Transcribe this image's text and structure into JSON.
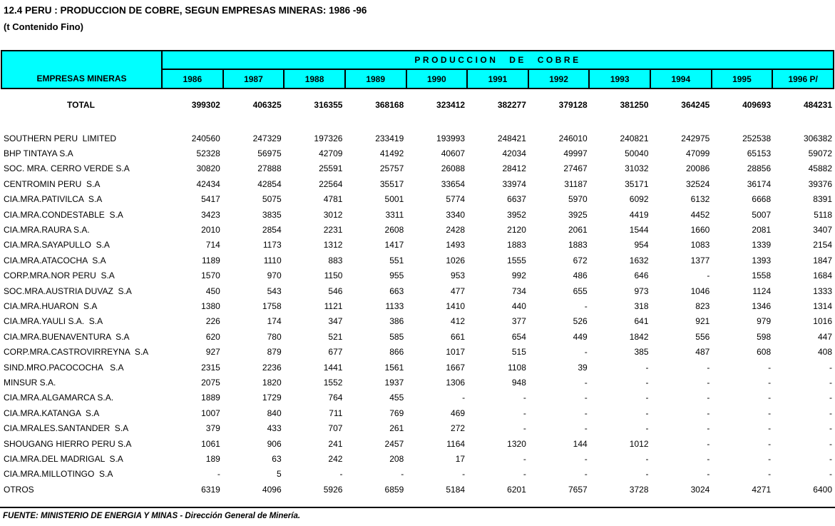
{
  "title": "12.4 PERU : PRODUCCION DE COBRE, SEGUN EMPRESAS MINERAS: 1986 -96",
  "subtitle": "(t Contenido Fino)",
  "colors": {
    "header_bg": "#00FFFF",
    "border": "#000000",
    "text": "#000000",
    "page_bg": "#FFFFFF"
  },
  "table": {
    "group_header": "PRODUCCION DE COBRE",
    "first_col_header": "EMPRESAS MINERAS",
    "years": [
      "1986",
      "1987",
      "1988",
      "1989",
      "1990",
      "1991",
      "1992",
      "1993",
      "1994",
      "1995",
      "1996 P/"
    ],
    "total_row": {
      "label": "TOTAL",
      "values": [
        "399302",
        "406325",
        "316355",
        "368168",
        "323412",
        "382277",
        "379128",
        "381250",
        "364245",
        "409693",
        "484231"
      ]
    },
    "rows": [
      {
        "label": "SOUTHERN PERU  LIMITED",
        "values": [
          "240560",
          "247329",
          "197326",
          "233419",
          "193993",
          "248421",
          "246010",
          "240821",
          "242975",
          "252538",
          "306382"
        ]
      },
      {
        "label": "BHP TINTAYA S.A",
        "values": [
          "52328",
          "56975",
          "42709",
          "41492",
          "40607",
          "42034",
          "49997",
          "50040",
          "47099",
          "65153",
          "59072"
        ]
      },
      {
        "label": "SOC. MRA. CERRO VERDE S.A",
        "values": [
          "30820",
          "27888",
          "25591",
          "25757",
          "26088",
          "28412",
          "27467",
          "31032",
          "20086",
          "28856",
          "45882"
        ]
      },
      {
        "label": "CENTROMIN PERU  S.A",
        "values": [
          "42434",
          "42854",
          "22564",
          "35517",
          "33654",
          "33974",
          "31187",
          "35171",
          "32524",
          "36174",
          "39376"
        ]
      },
      {
        "label": "CIA.MRA.PATIVILCA  S.A",
        "values": [
          "5417",
          "5075",
          "4781",
          "5001",
          "5774",
          "6637",
          "5970",
          "6092",
          "6132",
          "6668",
          "8391"
        ]
      },
      {
        "label": "CIA.MRA.CONDESTABLE  S.A",
        "values": [
          "3423",
          "3835",
          "3012",
          "3311",
          "3340",
          "3952",
          "3925",
          "4419",
          "4452",
          "5007",
          "5118"
        ]
      },
      {
        "label": "CIA.MRA.RAURA S.A.",
        "values": [
          "2010",
          "2854",
          "2231",
          "2608",
          "2428",
          "2120",
          "2061",
          "1544",
          "1660",
          "2081",
          "3407"
        ]
      },
      {
        "label": "CIA.MRA.SAYAPULLO  S.A",
        "values": [
          "714",
          "1173",
          "1312",
          "1417",
          "1493",
          "1883",
          "1883",
          "954",
          "1083",
          "1339",
          "2154"
        ]
      },
      {
        "label": "CIA.MRA.ATACOCHA  S.A",
        "values": [
          "1189",
          "1110",
          "883",
          "551",
          "1026",
          "1555",
          "672",
          "1632",
          "1377",
          "1393",
          "1847"
        ]
      },
      {
        "label": "CORP.MRA.NOR PERU  S.A",
        "values": [
          "1570",
          "970",
          "1150",
          "955",
          "953",
          "992",
          "486",
          "646",
          "-",
          "1558",
          "1684"
        ]
      },
      {
        "label": "SOC.MRA.AUSTRIA DUVAZ  S.A",
        "values": [
          "450",
          "543",
          "546",
          "663",
          "477",
          "734",
          "655",
          "973",
          "1046",
          "1124",
          "1333"
        ]
      },
      {
        "label": "CIA.MRA.HUARON  S.A",
        "values": [
          "1380",
          "1758",
          "1121",
          "1133",
          "1410",
          "440",
          "-",
          "318",
          "823",
          "1346",
          "1314"
        ]
      },
      {
        "label": "CIA.MRA.YAULI S.A.  S.A",
        "values": [
          "226",
          "174",
          "347",
          "386",
          "412",
          "377",
          "526",
          "641",
          "921",
          "979",
          "1016"
        ]
      },
      {
        "label": "CIA.MRA.BUENAVENTURA  S.A",
        "values": [
          "620",
          "780",
          "521",
          "585",
          "661",
          "654",
          "449",
          "1842",
          "556",
          "598",
          "447"
        ]
      },
      {
        "label": "CORP.MRA.CASTROVIRREYNA  S.A",
        "values": [
          "927",
          "879",
          "677",
          "866",
          "1017",
          "515",
          "-",
          "385",
          "487",
          "608",
          "408"
        ]
      },
      {
        "label": "SIND.MRO.PACOCOCHA   S.A",
        "values": [
          "2315",
          "2236",
          "1441",
          "1561",
          "1667",
          "1108",
          "39",
          "-",
          "-",
          "-",
          "-"
        ]
      },
      {
        "label": "MINSUR S.A.",
        "values": [
          "2075",
          "1820",
          "1552",
          "1937",
          "1306",
          "948",
          "-",
          "-",
          "-",
          "-",
          "-"
        ]
      },
      {
        "label": "CIA.MRA.ALGAMARCA S.A.",
        "values": [
          "1889",
          "1729",
          "764",
          "455",
          "-",
          "-",
          "-",
          "-",
          "-",
          "-",
          "-"
        ]
      },
      {
        "label": "CIA.MRA.KATANGA  S.A",
        "values": [
          "1007",
          "840",
          "711",
          "769",
          "469",
          "-",
          "-",
          "-",
          "-",
          "-",
          "-"
        ]
      },
      {
        "label": "CIA.MRALES.SANTANDER  S.A",
        "values": [
          "379",
          "433",
          "707",
          "261",
          "272",
          "-",
          "-",
          "-",
          "-",
          "-",
          "-"
        ]
      },
      {
        "label": "SHOUGANG HIERRO PERU S.A",
        "values": [
          "1061",
          "906",
          "241",
          "2457",
          "1164",
          "1320",
          "144",
          "1012",
          "-",
          "-",
          "-"
        ]
      },
      {
        "label": "CIA.MRA.DEL MADRIGAL  S.A",
        "values": [
          "189",
          "63",
          "242",
          "208",
          "17",
          "-",
          "-",
          "-",
          "-",
          "-",
          "-"
        ]
      },
      {
        "label": "CIA.MRA.MILLOTINGO  S.A",
        "values": [
          "-",
          "5",
          "-",
          "-",
          "-",
          "-",
          "-",
          "-",
          "-",
          "-",
          "-"
        ]
      },
      {
        "label": "OTROS",
        "values": [
          "6319",
          "4096",
          "5926",
          "6859",
          "5184",
          "6201",
          "7657",
          "3728",
          "3024",
          "4271",
          "6400"
        ]
      }
    ]
  },
  "footer": "FUENTE: MINISTERIO DE ENERGIA Y MINAS - Dirección General de Minería."
}
